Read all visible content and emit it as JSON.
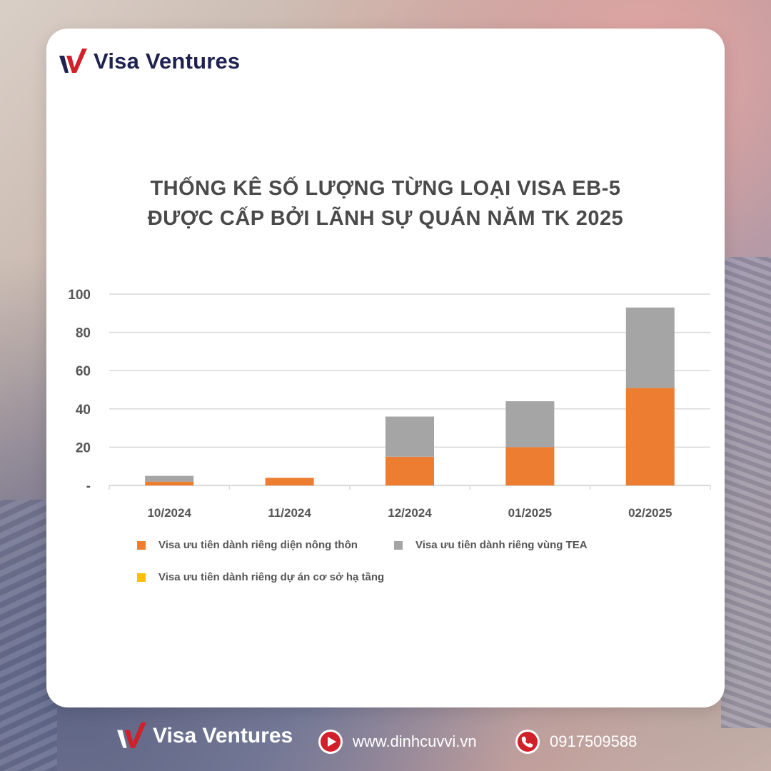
{
  "brand": {
    "name": "Visa Ventures",
    "colors": {
      "navy": "#1f2150",
      "red": "#d0202a"
    }
  },
  "title": {
    "line1": "THỐNG KÊ SỐ LƯỢNG TỪNG LOẠI VISA EB-5",
    "line2": "ĐƯỢC CẤP BỞI LÃNH SỰ QUÁN NĂM TK 2025"
  },
  "chart_data": {
    "type": "bar",
    "stacked": true,
    "categories": [
      "10/2024",
      "11/2024",
      "12/2024",
      "01/2025",
      "02/2025"
    ],
    "series": [
      {
        "name": "Visa ưu tiên dành riêng diện nông thôn",
        "color": "#ed7d31",
        "values": [
          2,
          4,
          15,
          20,
          51
        ]
      },
      {
        "name": "Visa ưu tiên dành riêng vùng TEA",
        "color": "#a5a5a5",
        "values": [
          3,
          0,
          21,
          24,
          42
        ]
      },
      {
        "name": "Visa ưu tiên dành riêng dự án cơ sở hạ tầng",
        "color": "#ffc000",
        "values": [
          0,
          0,
          0,
          0,
          0
        ]
      }
    ],
    "yticks": [
      "-",
      "20",
      "40",
      "60",
      "80",
      "100"
    ],
    "ylim": [
      0,
      100
    ],
    "grid": true,
    "legend_position": "bottom"
  },
  "footer": {
    "brand": "Visa Ventures",
    "website": "www.dinhcuvvi.vn",
    "phone": "0917509588",
    "icons": [
      "play-icon",
      "phone-icon"
    ]
  }
}
